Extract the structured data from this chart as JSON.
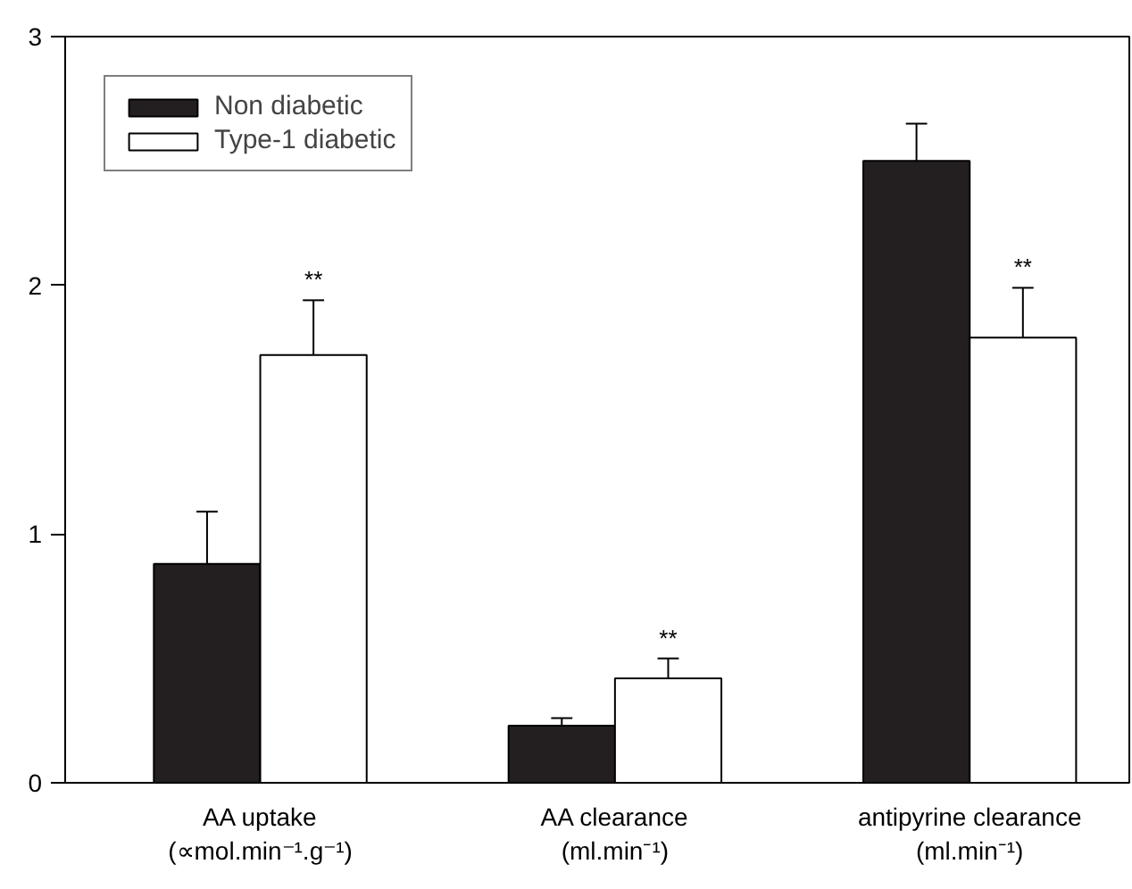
{
  "chart_data": {
    "type": "bar",
    "categories": [
      "AA uptake\n(∝mol.min⁻¹.g⁻¹)",
      "AA clearance\n(ml.min⁻¹)",
      "antipyrine clearance\n(ml.min⁻¹)"
    ],
    "series": [
      {
        "name": "Non diabetic",
        "color": "#231f20",
        "values": [
          0.88,
          0.23,
          2.5
        ],
        "errors": [
          0.21,
          0.03,
          0.15
        ]
      },
      {
        "name": "Type-1 diabetic",
        "color": "#ffffff",
        "values": [
          1.72,
          0.42,
          1.79
        ],
        "errors": [
          0.22,
          0.08,
          0.2
        ]
      }
    ],
    "ylim": [
      0,
      3
    ],
    "yticks": [
      0,
      1,
      2,
      3
    ],
    "grid": false,
    "legend": "top left",
    "annotations": [
      "**",
      "**",
      "**"
    ]
  }
}
